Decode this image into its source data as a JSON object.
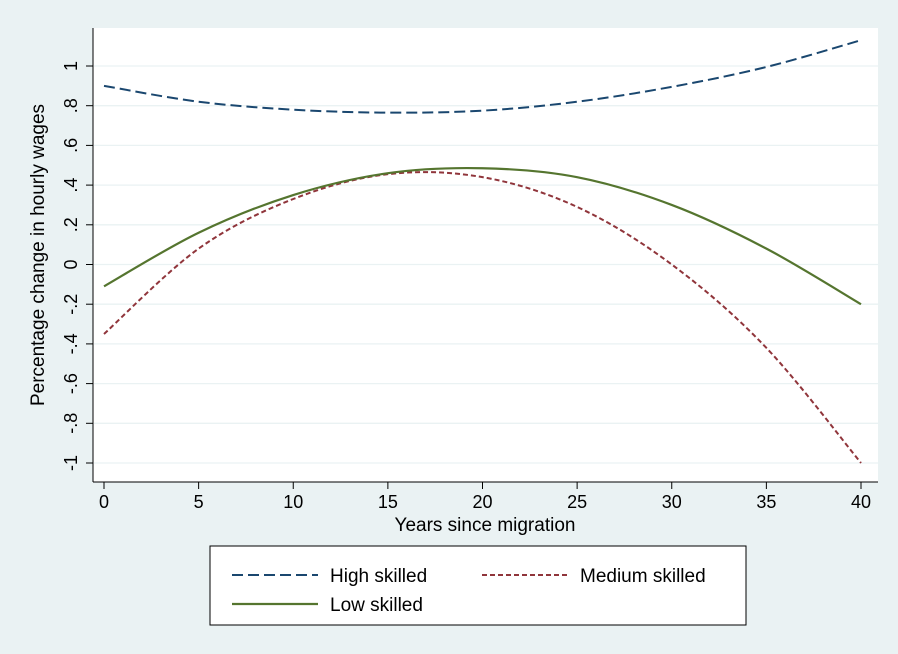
{
  "chart_data": {
    "type": "line",
    "title": "",
    "xlabel": "Years since migration",
    "ylabel": "Percentage change in hourly wages",
    "xlim": [
      0,
      40
    ],
    "ylim": [
      -1,
      1.1
    ],
    "x_ticks": [
      0,
      5,
      10,
      15,
      20,
      25,
      30,
      35,
      40
    ],
    "x_tick_labels": [
      "0",
      "5",
      "10",
      "15",
      "20",
      "25",
      "30",
      "35",
      "40"
    ],
    "y_ticks": [
      -1,
      -0.8,
      -0.6,
      -0.4,
      -0.2,
      0,
      0.2,
      0.4,
      0.6,
      0.8,
      1
    ],
    "y_tick_labels": [
      "-1",
      "-.8",
      "-.6",
      "-.4",
      "-.2",
      "0",
      ".2",
      ".4",
      ".6",
      ".8",
      "1"
    ],
    "grid": true,
    "legend_position": "bottom",
    "x": [
      0,
      5,
      10,
      15,
      20,
      25,
      30,
      35,
      40
    ],
    "series": [
      {
        "name": "High skilled",
        "color": "#1a476f",
        "style": "long-dash",
        "values": [
          0.9,
          0.82,
          0.78,
          0.765,
          0.775,
          0.82,
          0.895,
          0.995,
          1.13
        ]
      },
      {
        "name": "Medium skilled",
        "color": "#90353b",
        "style": "short-dash",
        "values": [
          -0.35,
          0.08,
          0.33,
          0.455,
          0.44,
          0.29,
          0.0,
          -0.42,
          -1.0
        ]
      },
      {
        "name": "Low skilled",
        "color": "#55752f",
        "style": "solid",
        "values": [
          -0.11,
          0.16,
          0.35,
          0.46,
          0.485,
          0.44,
          0.3,
          0.08,
          -0.2
        ]
      }
    ]
  },
  "colors": {
    "background": "#eaf2f3",
    "plot_area": "#ffffff",
    "grid": "#eaf2f3"
  }
}
